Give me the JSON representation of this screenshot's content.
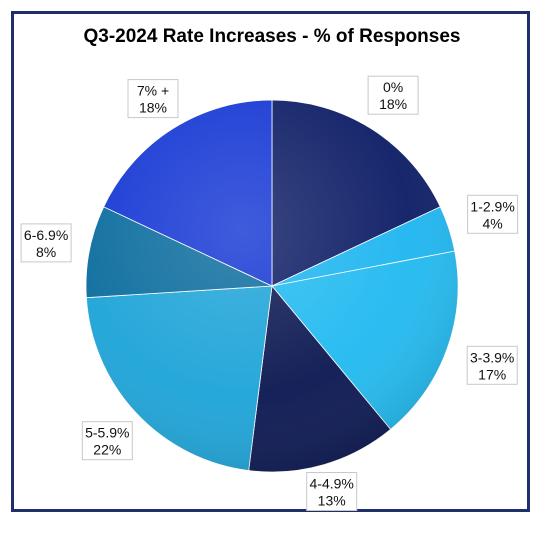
{
  "chart_data": {
    "type": "pie",
    "title": "Q3-2024 Rate Increases - % of Responses",
    "categories": [
      "0%",
      "1-2.9%",
      "3-3.9%",
      "4-4.9%",
      "5-5.9%",
      "6-6.9%",
      "7% +"
    ],
    "values": [
      18,
      4,
      17,
      13,
      22,
      8,
      18
    ],
    "value_labels": [
      "18%",
      "4%",
      "17%",
      "13%",
      "22%",
      "8%",
      "18%"
    ],
    "colors": [
      "#0e1e66",
      "#1fb6f0",
      "#22baf0",
      "#0c1852",
      "#1ea4d8",
      "#0c6d9e",
      "#1638d4"
    ],
    "legend": "none"
  }
}
